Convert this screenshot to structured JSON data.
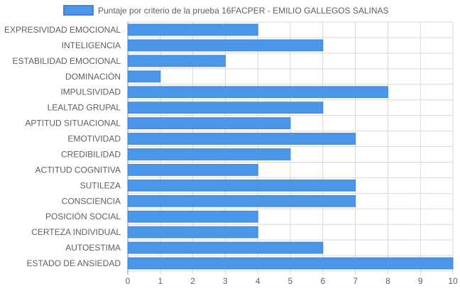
{
  "chart_data": {
    "type": "bar",
    "orientation": "horizontal",
    "legend": {
      "position": "top",
      "label": "Puntaje por criterio de la prueba 16FACPER - EMILIO GALLEGOS SALINAS"
    },
    "categories": [
      "EXPRESIVIDAD EMOCIONAL",
      "INTELIGENCIA",
      "ESTABILIDAD EMOCIONAL",
      "DOMINACIÓN",
      "IMPULSIVIDAD",
      "LEALTAD GRUPAL",
      "APTITUD SITUACIONAL",
      "EMOTIVIDAD",
      "CREDIBILIDAD",
      "ACTITUD COGNITIVA",
      "SUTILEZA",
      "CONSCIENCIA",
      "POSICIÓN SOCIAL",
      "CERTEZA INDIVIDUAL",
      "AUTOESTIMA",
      "ESTADO DE ANSIEDAD"
    ],
    "series": [
      {
        "name": "Puntaje por criterio de la prueba 16FACPER - EMILIO GALLEGOS SALINAS",
        "values": [
          4,
          6,
          3,
          1,
          8,
          6,
          5,
          7,
          5,
          4,
          7,
          7,
          4,
          4,
          6,
          10
        ]
      }
    ],
    "xlim": [
      0,
      10
    ],
    "xticks": [
      "0",
      "1",
      "2",
      "3",
      "4",
      "5",
      "6",
      "7",
      "8",
      "9",
      "10"
    ],
    "grid": true,
    "colors": {
      "bar_fill": "#4a97ea",
      "bar_stroke": "#3b87de",
      "grid": "#d9d9d9",
      "text": "#5f5f5f"
    }
  }
}
